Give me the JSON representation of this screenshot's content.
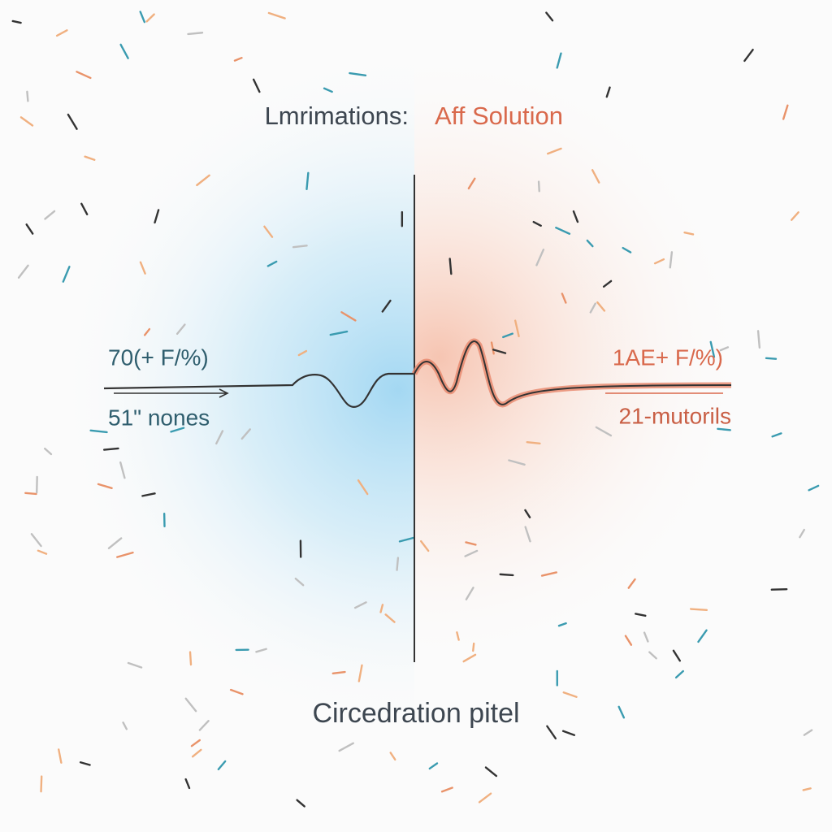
{
  "title": {
    "left": "Lmrimations:",
    "right": "Aff Solution"
  },
  "left_panel": {
    "value": "70(+ F/%)",
    "caption": "51\" nones"
  },
  "right_panel": {
    "value": "1AE+ F/%)",
    "caption": "21-mutorils"
  },
  "footer": "Circedration pitel"
}
